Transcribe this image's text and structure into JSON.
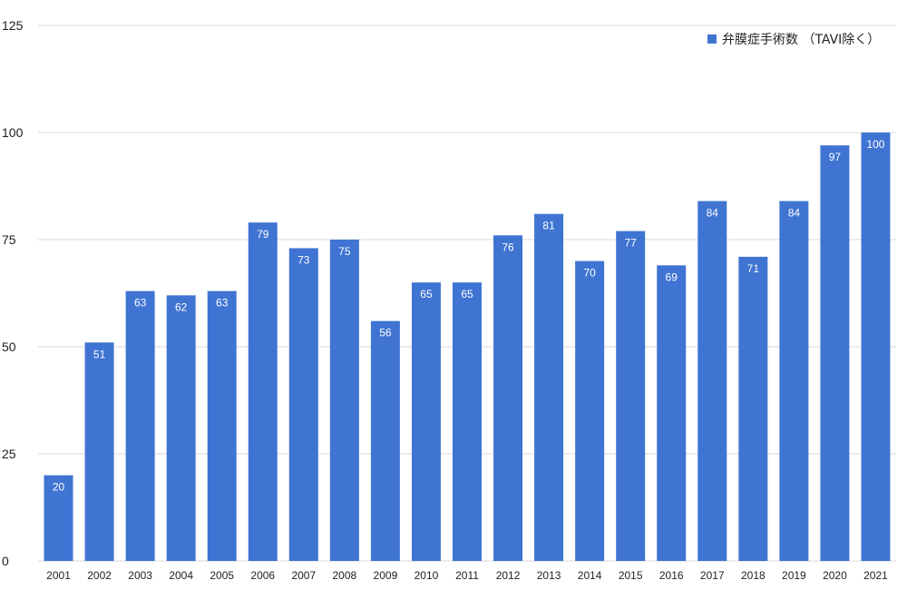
{
  "chart_data": {
    "type": "bar",
    "categories": [
      "2001",
      "2002",
      "2003",
      "2004",
      "2005",
      "2006",
      "2007",
      "2008",
      "2009",
      "2010",
      "2011",
      "2012",
      "2013",
      "2014",
      "2015",
      "2016",
      "2017",
      "2018",
      "2019",
      "2020",
      "2021"
    ],
    "series": [
      {
        "name": "弁膜症手術数 （TAVI除く）",
        "values": [
          20,
          51,
          63,
          62,
          63,
          79,
          73,
          75,
          56,
          65,
          65,
          76,
          81,
          70,
          77,
          69,
          84,
          71,
          84,
          97,
          100
        ],
        "color": "#3f74d2"
      }
    ],
    "yticks": [
      0,
      25,
      50,
      75,
      100,
      125
    ],
    "ylim": [
      0,
      125
    ],
    "grid": true,
    "legend_position": "top-right",
    "data_labels": true
  }
}
